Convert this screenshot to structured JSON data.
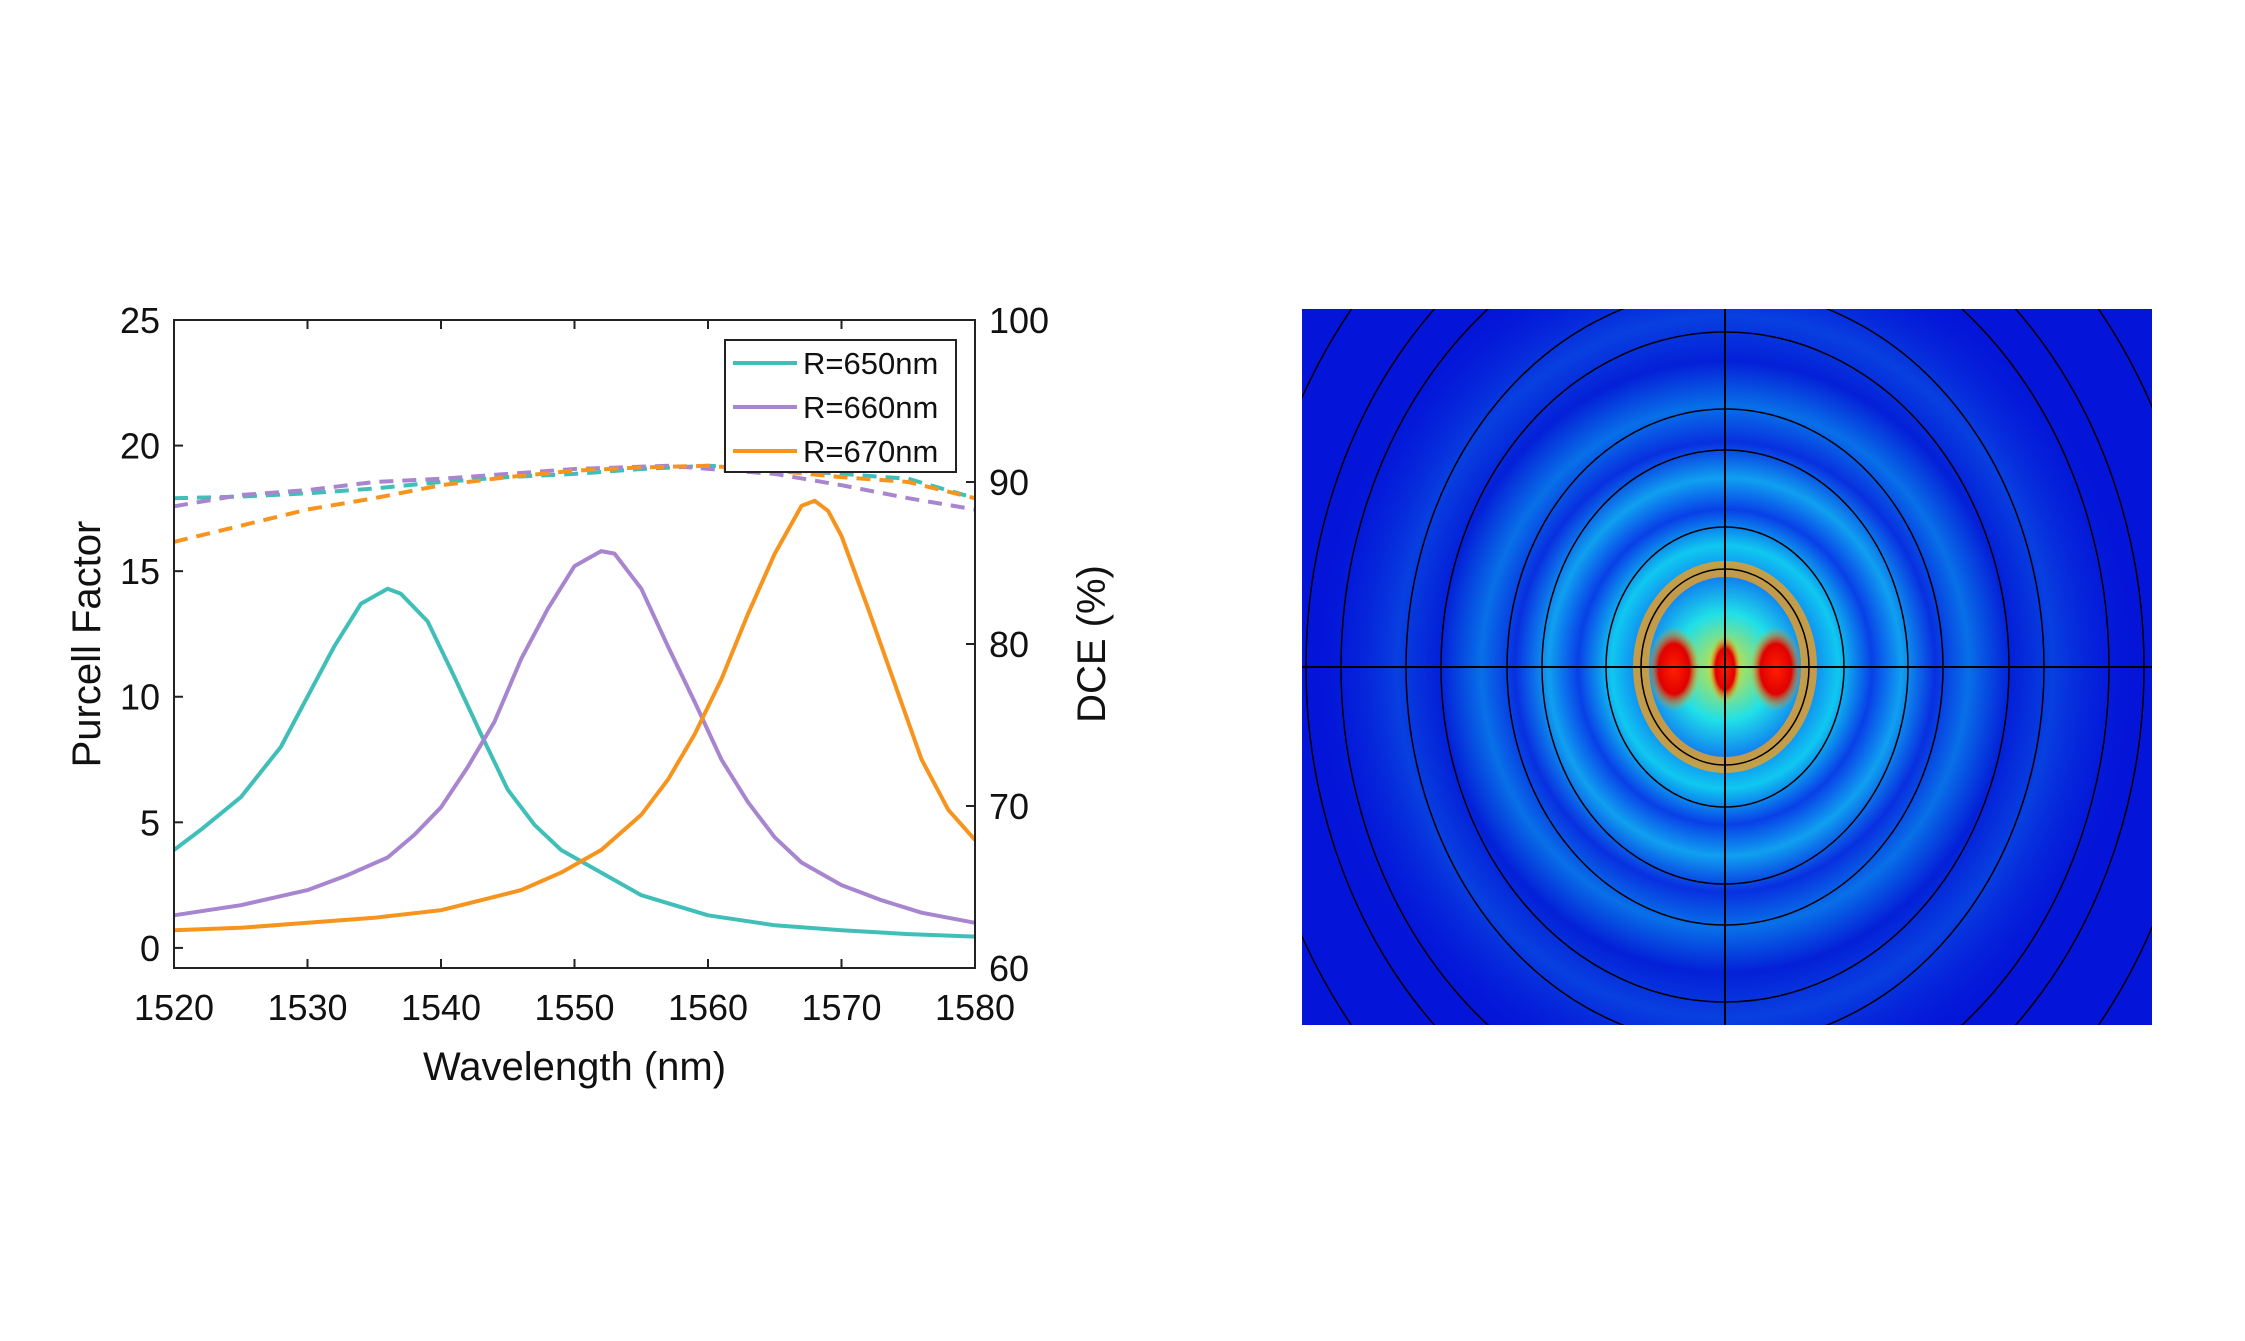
{
  "chart_data": [
    {
      "type": "line",
      "xlabel": "Wavelength (nm)",
      "ylabel": "Purcell Factor",
      "y2label": "DCE (%)",
      "xlim": [
        1520,
        1580
      ],
      "ylim": [
        -0.8,
        25
      ],
      "y2lim": [
        60,
        100
      ],
      "xticks": [
        1520,
        1530,
        1540,
        1550,
        1560,
        1570,
        1580
      ],
      "yticks": [
        0,
        5,
        10,
        15,
        20,
        25
      ],
      "y2ticks": [
        60,
        70,
        80,
        90,
        100
      ],
      "grid": false,
      "legend_position": "top-right",
      "colors": {
        "R650": "#3fbfb8",
        "R660": "#a885cf",
        "R670": "#f7941d"
      },
      "series": [
        {
          "name": "R=650nm",
          "key": "R650",
          "axis": "left",
          "style": "solid",
          "x": [
            1520,
            1522,
            1525,
            1528,
            1530,
            1532,
            1534,
            1536,
            1537,
            1539,
            1541,
            1543,
            1545,
            1547,
            1549,
            1552,
            1555,
            1560,
            1565,
            1570,
            1575,
            1580
          ],
          "y": [
            3.9,
            4.7,
            6.0,
            8.0,
            10.0,
            12.0,
            13.7,
            14.3,
            14.1,
            13.0,
            10.8,
            8.5,
            6.3,
            4.9,
            3.9,
            3.0,
            2.1,
            1.3,
            0.9,
            0.7,
            0.55,
            0.45
          ]
        },
        {
          "name": "R=660nm",
          "key": "R660",
          "axis": "left",
          "style": "solid",
          "x": [
            1520,
            1525,
            1530,
            1533,
            1536,
            1538,
            1540,
            1542,
            1544,
            1546,
            1548,
            1550,
            1552,
            1553,
            1555,
            1557,
            1559,
            1561,
            1563,
            1565,
            1567,
            1570,
            1573,
            1576,
            1580
          ],
          "y": [
            1.3,
            1.7,
            2.3,
            2.9,
            3.6,
            4.5,
            5.6,
            7.2,
            9.0,
            11.5,
            13.5,
            15.2,
            15.8,
            15.7,
            14.3,
            12.0,
            9.8,
            7.5,
            5.8,
            4.4,
            3.4,
            2.5,
            1.9,
            1.4,
            1.0
          ]
        },
        {
          "name": "R=670nm",
          "key": "R670",
          "axis": "left",
          "style": "solid",
          "x": [
            1520,
            1525,
            1530,
            1535,
            1540,
            1543,
            1546,
            1549,
            1552,
            1555,
            1557,
            1559,
            1561,
            1563,
            1565,
            1567,
            1568,
            1569,
            1570,
            1572,
            1574,
            1576,
            1578,
            1580
          ],
          "y": [
            0.7,
            0.8,
            1.0,
            1.2,
            1.5,
            1.9,
            2.3,
            3.0,
            3.9,
            5.3,
            6.7,
            8.5,
            10.7,
            13.3,
            15.7,
            17.6,
            17.8,
            17.4,
            16.4,
            13.5,
            10.5,
            7.5,
            5.5,
            4.3
          ]
        },
        {
          "key": "R650",
          "axis": "right",
          "style": "dashed",
          "x": [
            1520,
            1525,
            1530,
            1535,
            1540,
            1545,
            1550,
            1555,
            1560,
            1565,
            1570,
            1575,
            1580
          ],
          "y": [
            89.0,
            89.1,
            89.3,
            89.6,
            90.0,
            90.3,
            90.5,
            90.8,
            91.0,
            90.8,
            90.5,
            90.2,
            89.0
          ]
        },
        {
          "key": "R660",
          "axis": "right",
          "style": "dashed",
          "x": [
            1520,
            1525,
            1530,
            1535,
            1540,
            1545,
            1550,
            1557,
            1565,
            1570,
            1575,
            1580
          ],
          "y": [
            88.5,
            89.2,
            89.5,
            90.0,
            90.2,
            90.5,
            90.8,
            91.0,
            90.5,
            89.8,
            89.0,
            88.3
          ]
        },
        {
          "key": "R670",
          "axis": "right",
          "style": "dashed",
          "x": [
            1520,
            1525,
            1530,
            1535,
            1540,
            1545,
            1550,
            1555,
            1560,
            1565,
            1570,
            1575,
            1580
          ],
          "y": [
            86.3,
            87.3,
            88.3,
            89.0,
            89.8,
            90.3,
            90.7,
            90.9,
            91.0,
            90.7,
            90.3,
            90.0,
            89.0
          ]
        }
      ]
    }
  ]
}
